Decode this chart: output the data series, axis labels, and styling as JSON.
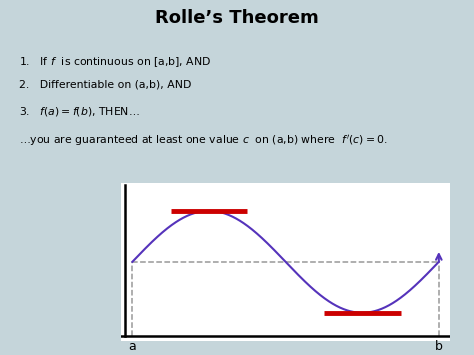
{
  "title": "Rolle’s Theorem",
  "bg_color": "#c5d5da",
  "plot_bg_color": "#ffffff",
  "text_lines": [
    "1.   If $f$  is continuous on [a,b], AND",
    "2.   Differentiable on (a,b), AND",
    "3.   $f(a) = f(b)$, THEN…",
    "…you are guaranteed at least one value $c$  on (a,b) where  $f'(c) = 0$."
  ],
  "curve_color": "#5533bb",
  "red_bar_color": "#cc0000",
  "dashed_color": "#999999",
  "axis_color": "#000000",
  "title_fontsize": 13,
  "text_fontsize": 7.8
}
